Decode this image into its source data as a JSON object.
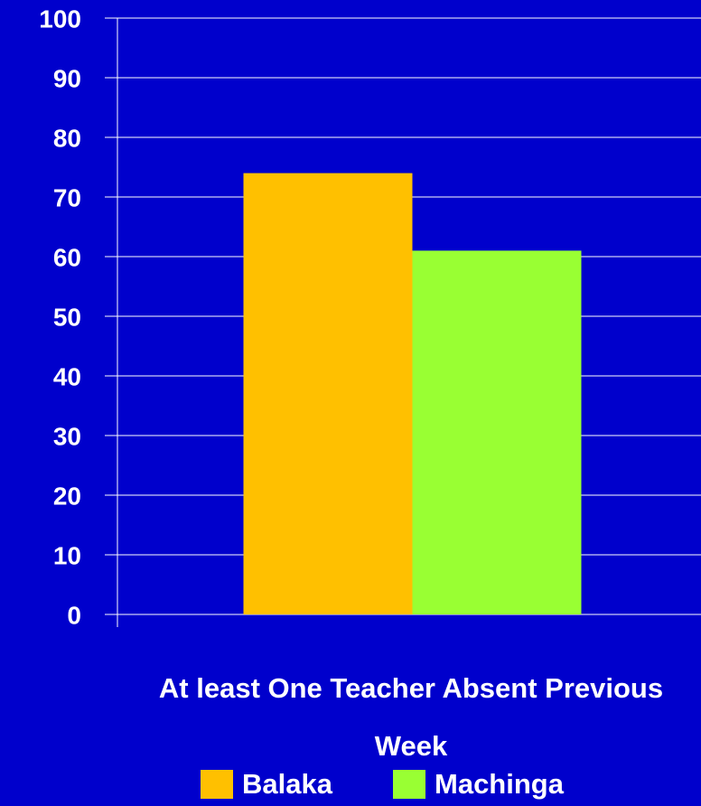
{
  "chart_data": {
    "type": "bar",
    "categories": [
      "At least One Teacher Absent Previous Week"
    ],
    "series": [
      {
        "name": "Balaka",
        "color": "#ffc000",
        "values": [
          74
        ]
      },
      {
        "name": "Machinga",
        "color": "#99ff33",
        "values": [
          61
        ]
      }
    ],
    "ylim": [
      0,
      100
    ],
    "yticks": [
      0,
      10,
      20,
      30,
      40,
      50,
      60,
      70,
      80,
      90,
      100
    ],
    "grid": true,
    "legend": "bottom"
  }
}
